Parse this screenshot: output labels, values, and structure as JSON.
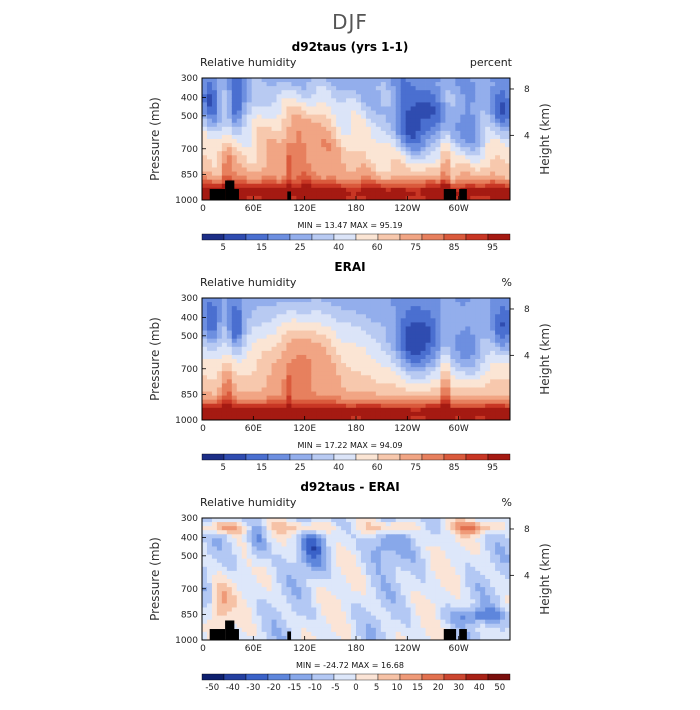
{
  "page_title": "DJF",
  "chart_data": [
    {
      "type": "heatmap",
      "title": "d92taus (yrs 1-1)",
      "variable": "Relative humidity",
      "units": "percent",
      "min_max": "MIN =   13.47   MAX =   95.19",
      "ylabel": "Pressure (mb)",
      "ylabel_right": "Height (km)",
      "x_ticks": [
        "0",
        "60E",
        "120E",
        "180",
        "120W",
        "60W"
      ],
      "y_ticks": [
        "300",
        "400",
        "500",
        "700",
        "850",
        "1000"
      ],
      "y2_ticks": [
        "8",
        "4"
      ],
      "colorbar_labels": [
        "5",
        "15",
        "25",
        "40",
        "60",
        "75",
        "85",
        "95"
      ],
      "colormap": "red-blue",
      "topography_mask": true
    },
    {
      "type": "heatmap",
      "title": "ERAI",
      "variable": "Relative humidity",
      "units": "%",
      "min_max": "MIN =   17.22   MAX =   94.09",
      "ylabel": "Pressure (mb)",
      "ylabel_right": "Height (km)",
      "x_ticks": [
        "0",
        "60E",
        "120E",
        "180",
        "120W",
        "60W"
      ],
      "y_ticks": [
        "300",
        "400",
        "500",
        "700",
        "850",
        "1000"
      ],
      "y2_ticks": [
        "8",
        "4"
      ],
      "colorbar_labels": [
        "5",
        "15",
        "25",
        "40",
        "60",
        "75",
        "85",
        "95"
      ],
      "colormap": "red-blue",
      "topography_mask": false
    },
    {
      "type": "heatmap",
      "title": "d92taus - ERAI",
      "variable": "Relative humidity",
      "units": "%",
      "min_max": "MIN =  -24.72   MAX =   16.68",
      "ylabel": "Pressure (mb)",
      "ylabel_right": "Height (km)",
      "x_ticks": [
        "0",
        "60E",
        "120E",
        "180",
        "120W",
        "60W"
      ],
      "y_ticks": [
        "300",
        "400",
        "500",
        "700",
        "850",
        "1000"
      ],
      "y2_ticks": [
        "8",
        "4"
      ],
      "colorbar_labels": [
        "-50",
        "-40",
        "-30",
        "-20",
        "-15",
        "-10",
        "-5",
        "0",
        "5",
        "10",
        "15",
        "20",
        "30",
        "40",
        "50"
      ],
      "colormap": "blue-white-red",
      "topography_mask": true
    }
  ]
}
